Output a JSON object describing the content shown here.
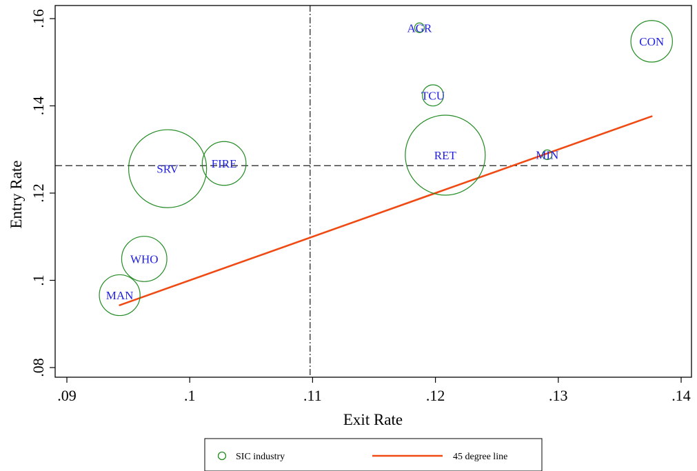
{
  "chart_data": {
    "type": "scatter",
    "title": "",
    "xlabel": "Exit Rate",
    "ylabel": "Entry Rate",
    "xlim": [
      0.09,
      0.14
    ],
    "ylim": [
      0.08,
      0.16
    ],
    "xticks": [
      ".09",
      ".1",
      ".11",
      ".12",
      ".13",
      ".14"
    ],
    "yticks": [
      ".08",
      ".1",
      ".12",
      ".14",
      ".16"
    ],
    "grid": false,
    "legend_position": "bottom",
    "mean_exit_rate": 0.1098,
    "mean_entry_rate": 0.1263,
    "series": [
      {
        "name": "SIC industry",
        "color": "#228b22",
        "label_color": "#1f1fe0",
        "points": [
          {
            "label": "AGR",
            "x": 0.1187,
            "y": 0.1579,
            "size": 1
          },
          {
            "label": "CON",
            "x": 0.1376,
            "y": 0.1548,
            "size": 27
          },
          {
            "label": "TCU",
            "x": 0.1198,
            "y": 0.1424,
            "size": 7
          },
          {
            "label": "RET",
            "x": 0.1208,
            "y": 0.1287,
            "size": 100
          },
          {
            "label": "MIN",
            "x": 0.1291,
            "y": 0.1288,
            "size": 1
          },
          {
            "label": "SRV",
            "x": 0.0982,
            "y": 0.1256,
            "size": 95
          },
          {
            "label": "FIRE",
            "x": 0.1028,
            "y": 0.1268,
            "size": 30
          },
          {
            "label": "WHO",
            "x": 0.0963,
            "y": 0.1049,
            "size": 32
          },
          {
            "label": "MAN",
            "x": 0.0943,
            "y": 0.0966,
            "size": 26
          }
        ]
      },
      {
        "name": "45 degree line",
        "color": "#f04a14",
        "x": [
          0.0943,
          0.1376
        ],
        "y": [
          0.0943,
          0.1376
        ]
      }
    ]
  }
}
